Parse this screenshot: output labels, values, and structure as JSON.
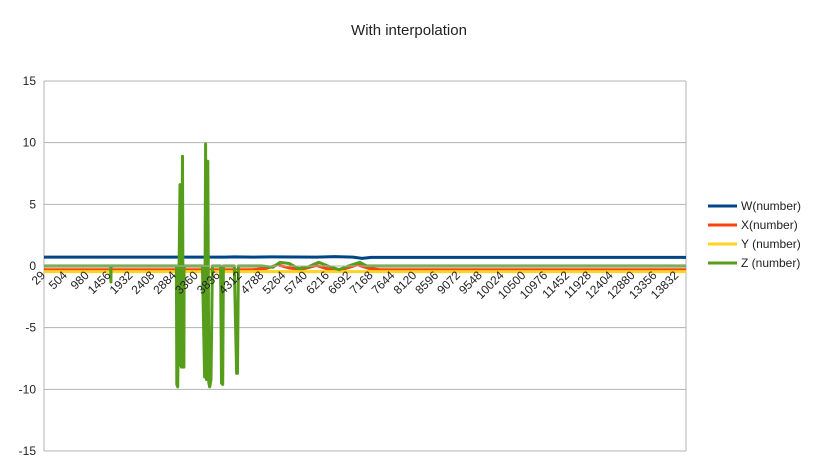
{
  "chart_data": {
    "type": "line",
    "title": "With interpolation",
    "xlabel": "",
    "ylabel": "",
    "ylim": [
      -15,
      15
    ],
    "y_ticks": [
      15,
      10,
      5,
      0,
      -5,
      -10,
      -15
    ],
    "x_tick_labels": [
      "29",
      "504",
      "980",
      "1456",
      "1932",
      "2408",
      "2884",
      "3360",
      "3836",
      "4312",
      "4788",
      "5264",
      "5740",
      "6216",
      "6692",
      "7168",
      "7644",
      "8120",
      "8596",
      "9072",
      "9548",
      "10024",
      "10500",
      "10976",
      "11452",
      "11928",
      "12404",
      "12880",
      "13356",
      "13832"
    ],
    "xlim": [
      29,
      14100
    ],
    "grid": "horizontal",
    "legend_placement": "right",
    "series": [
      {
        "name": "W(number)",
        "color": "#004586",
        "x": [
          29,
          4000,
          4200,
          4600,
          5000,
          6000,
          6400,
          6800,
          7000,
          7200,
          14100
        ],
        "values": [
          0.72,
          0.72,
          0.74,
          0.72,
          0.74,
          0.72,
          0.76,
          0.72,
          0.62,
          0.7,
          0.7
        ]
      },
      {
        "name": "X(number)",
        "color": "#ff420e",
        "x": [
          29,
          4600,
          4900,
          5150,
          5400,
          5650,
          6000,
          6250,
          6550,
          6900,
          7150,
          7400,
          14100
        ],
        "values": [
          -0.3,
          -0.3,
          -0.2,
          0.1,
          -0.15,
          -0.3,
          0.05,
          -0.25,
          -0.3,
          0.1,
          -0.2,
          -0.3,
          -0.3
        ]
      },
      {
        "name": "Y (number)",
        "color": "#ffd320",
        "x": [
          29,
          14100
        ],
        "values": [
          -0.45,
          -0.45
        ]
      },
      {
        "name": "Z (number)",
        "color": "#579d1c",
        "x": [
          29,
          1490,
          1495,
          1500,
          2930,
          2940,
          2960,
          2990,
          3010,
          3020,
          3040,
          3050,
          3065,
          3080,
          3095,
          3100,
          3500,
          3550,
          3570,
          3590,
          3620,
          3640,
          3660,
          3690,
          3720,
          3760,
          3900,
          3920,
          3945,
          3960,
          4000,
          4100,
          4200,
          4250,
          4270,
          4290,
          4300,
          4500,
          4800,
          5050,
          5200,
          5400,
          5600,
          5800,
          6050,
          6250,
          6500,
          6700,
          6950,
          7100,
          7300,
          14100
        ],
        "values": [
          0,
          0,
          -1.3,
          0,
          0,
          -9.6,
          -9.8,
          0,
          6.6,
          -8,
          -8.2,
          0,
          8.9,
          -8.2,
          -8.2,
          0,
          0,
          -9,
          9.9,
          -9.2,
          8.5,
          -9.5,
          -9.8,
          -9.2,
          0,
          0,
          0,
          -9.5,
          -9.6,
          0,
          0,
          0,
          0,
          -8.7,
          -8.7,
          0,
          0,
          0,
          0,
          -0.1,
          0.3,
          0.2,
          -0.2,
          -0.1,
          0.3,
          0,
          -0.3,
          0,
          0.3,
          0,
          0,
          0
        ]
      }
    ]
  }
}
